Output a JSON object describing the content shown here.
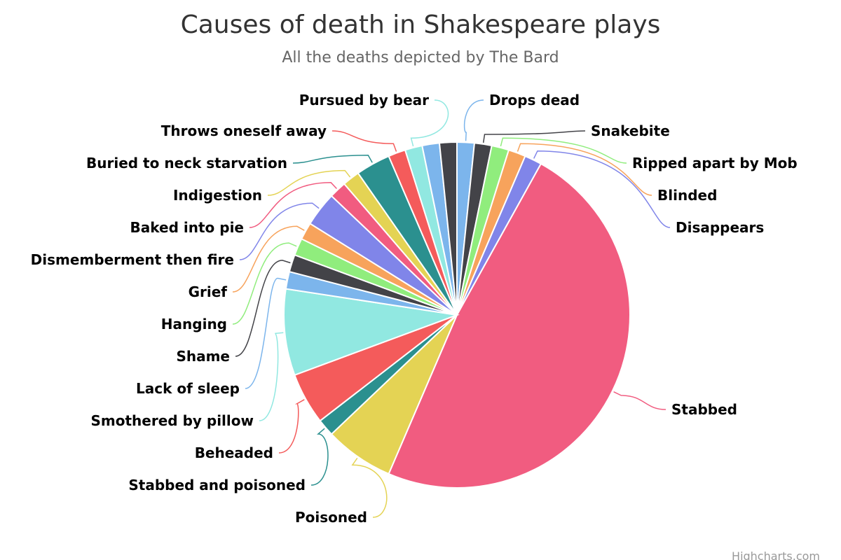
{
  "chart_data": {
    "type": "pie",
    "title": "Causes of death in Shakespeare plays",
    "subtitle": "All the deaths depicted by The Bard",
    "unit": "deaths",
    "credits": "Highcharts.com",
    "slices": [
      {
        "label": "Drops dead",
        "value": 1,
        "color": "#7cb5ec"
      },
      {
        "label": "Snakebite",
        "value": 1,
        "color": "#434348"
      },
      {
        "label": "Ripped apart by Mob",
        "value": 1,
        "color": "#90ed7d"
      },
      {
        "label": "Blinded",
        "value": 1,
        "color": "#f7a35c"
      },
      {
        "label": "Disappears",
        "value": 1,
        "color": "#8085e9"
      },
      {
        "label": "Stabbed",
        "value": 30,
        "color": "#f15c80"
      },
      {
        "label": "Poisoned",
        "value": 4,
        "color": "#e4d354"
      },
      {
        "label": "Stabbed and poisoned",
        "value": 1,
        "color": "#2b908f"
      },
      {
        "label": "Beheaded",
        "value": 3,
        "color": "#f45b5b"
      },
      {
        "label": "Smothered by pillow",
        "value": 5,
        "color": "#91e8e1"
      },
      {
        "label": "Lack of sleep",
        "value": 1,
        "color": "#7cb5ec"
      },
      {
        "label": "Shame",
        "value": 1,
        "color": "#434348"
      },
      {
        "label": "Hanging",
        "value": 1,
        "color": "#90ed7d"
      },
      {
        "label": "Grief",
        "value": 1,
        "color": "#f7a35c"
      },
      {
        "label": "Dismemberment then fire",
        "value": 2,
        "color": "#8085e9"
      },
      {
        "label": "Baked into pie",
        "value": 1,
        "color": "#f15c80"
      },
      {
        "label": "Indigestion",
        "value": 1,
        "color": "#e4d354"
      },
      {
        "label": "Buried to neck starvation",
        "value": 2,
        "color": "#2b908f"
      },
      {
        "label": "Throws oneself away",
        "value": 1,
        "color": "#f45b5b"
      },
      {
        "label": "Pursued by bear",
        "value": 1,
        "color": "#91e8e1"
      },
      {
        "label": "",
        "value": 1,
        "color": "#7cb5ec"
      },
      {
        "label": "",
        "value": 1,
        "color": "#434348"
      }
    ]
  }
}
